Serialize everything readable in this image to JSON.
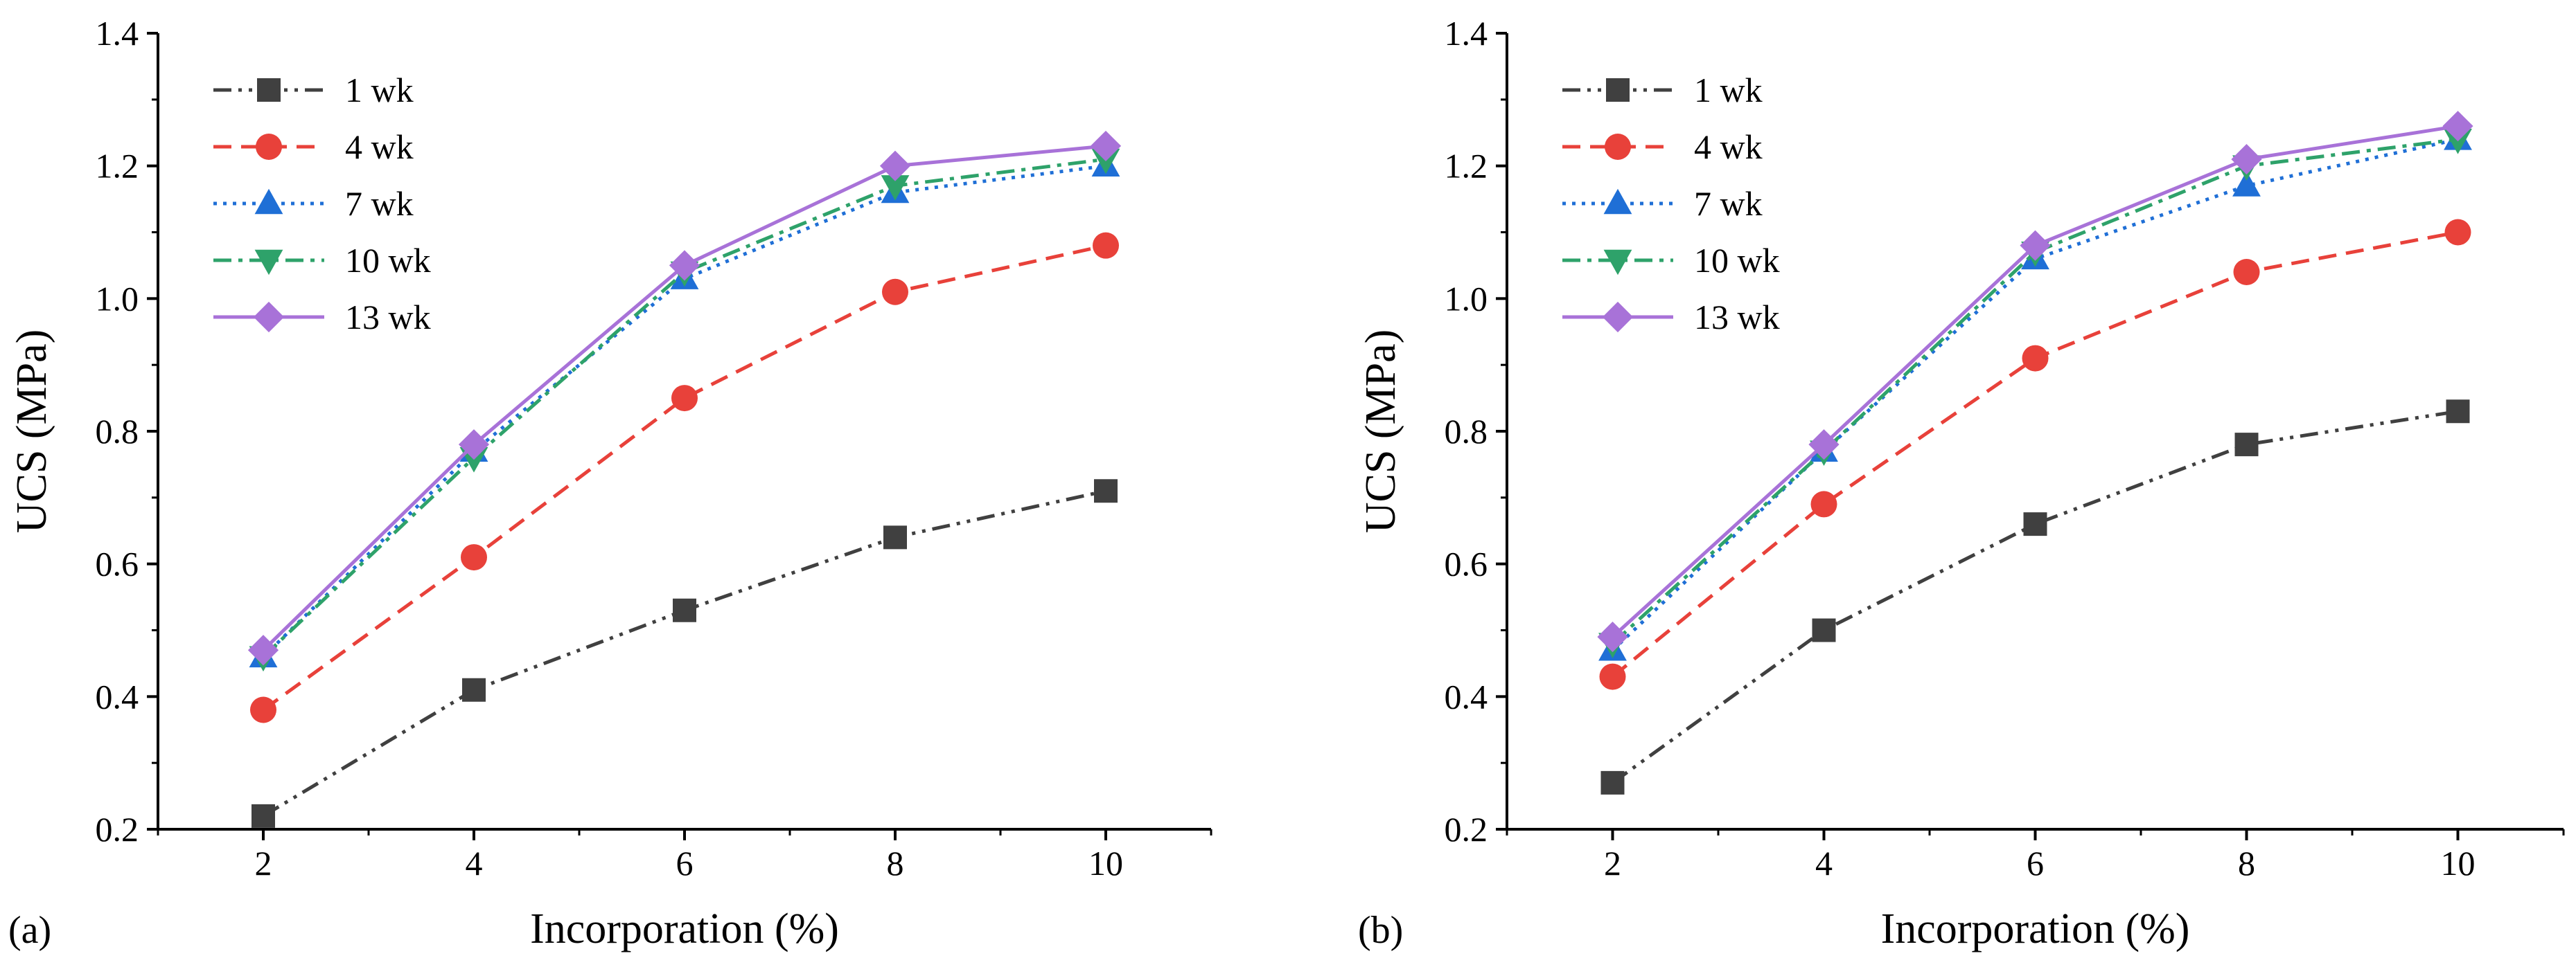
{
  "chart_data": [
    {
      "type": "line",
      "panel_label": "(a)",
      "xlabel": "Incorporation (%)",
      "ylabel": "UCS (MPa)",
      "x": [
        2,
        4,
        6,
        8,
        10
      ],
      "xticks": [
        "2",
        "4",
        "6",
        "8",
        "10"
      ],
      "xlim": [
        1,
        11
      ],
      "ylim": [
        0.2,
        1.4
      ],
      "yticks": [
        "0.2",
        "0.4",
        "0.6",
        "0.8",
        "1.0",
        "1.2",
        "1.4"
      ],
      "legend_position": "top-left",
      "series": [
        {
          "name": "1 wk",
          "values": [
            0.22,
            0.41,
            0.53,
            0.64,
            0.71
          ]
        },
        {
          "name": "4 wk",
          "values": [
            0.38,
            0.61,
            0.85,
            1.01,
            1.08
          ]
        },
        {
          "name": "7 wk",
          "values": [
            0.46,
            0.77,
            1.03,
            1.16,
            1.2
          ]
        },
        {
          "name": "10 wk",
          "values": [
            0.46,
            0.76,
            1.04,
            1.17,
            1.21
          ]
        },
        {
          "name": "13 wk",
          "values": [
            0.47,
            0.78,
            1.05,
            1.2,
            1.23
          ]
        }
      ]
    },
    {
      "type": "line",
      "panel_label": "(b)",
      "xlabel": "Incorporation (%)",
      "ylabel": "UCS (MPa)",
      "x": [
        2,
        4,
        6,
        8,
        10
      ],
      "xticks": [
        "2",
        "4",
        "6",
        "8",
        "10"
      ],
      "xlim": [
        1,
        11
      ],
      "ylim": [
        0.2,
        1.4
      ],
      "yticks": [
        "0.2",
        "0.4",
        "0.6",
        "0.8",
        "1.0",
        "1.2",
        "1.4"
      ],
      "legend_position": "top-left",
      "series": [
        {
          "name": "1 wk",
          "values": [
            0.27,
            0.5,
            0.66,
            0.78,
            0.83
          ]
        },
        {
          "name": "4 wk",
          "values": [
            0.43,
            0.69,
            0.91,
            1.04,
            1.1
          ]
        },
        {
          "name": "7 wk",
          "values": [
            0.47,
            0.77,
            1.06,
            1.17,
            1.24
          ]
        },
        {
          "name": "10 wk",
          "values": [
            0.48,
            0.77,
            1.07,
            1.2,
            1.24
          ]
        },
        {
          "name": "13 wk",
          "values": [
            0.49,
            0.78,
            1.08,
            1.21,
            1.26
          ]
        }
      ]
    }
  ],
  "series_styles": [
    {
      "color": "#404040",
      "marker": "square",
      "dash": "dash-dot-dot"
    },
    {
      "color": "#e8413a",
      "marker": "circle",
      "dash": "dash"
    },
    {
      "color": "#1f6fd6",
      "marker": "triangle-up",
      "dash": "dot"
    },
    {
      "color": "#2ea26a",
      "marker": "triangle-down",
      "dash": "dash-dot"
    },
    {
      "color": "#a872d8",
      "marker": "diamond",
      "dash": "solid"
    }
  ]
}
